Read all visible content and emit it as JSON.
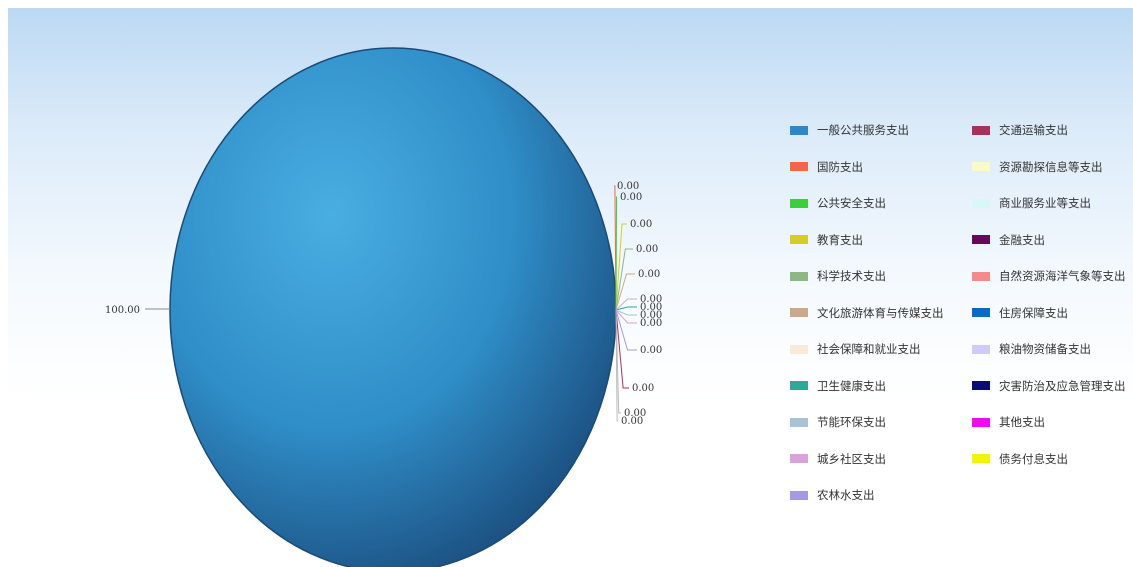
{
  "colors": {
    "pie_main": "#2f8dc7",
    "pie_light": "#49aee2",
    "pie_dark": "#1b4d7e"
  },
  "chart_data": {
    "type": "pie",
    "title": "",
    "legend_position": "right",
    "big_label": "100.00",
    "small_label": "0.00",
    "slices": [
      {
        "name": "一般公共服务支出",
        "value": 100.0,
        "color": "#2f87c9"
      },
      {
        "name": "国防支出",
        "value": 0.0,
        "color": "#ee6a43"
      },
      {
        "name": "公共安全支出",
        "value": 0.0,
        "color": "#3bcf3b"
      },
      {
        "name": "教育支出",
        "value": 0.0,
        "color": "#d6ce27"
      },
      {
        "name": "科学技术支出",
        "value": 0.0,
        "color": "#8fb786"
      },
      {
        "name": "文化旅游体育与传媒支出",
        "value": 0.0,
        "color": "#c9a98a"
      },
      {
        "name": "社会保障和就业支出",
        "value": 0.0,
        "color": "#f9ead9"
      },
      {
        "name": "卫生健康支出",
        "value": 0.0,
        "color": "#2fa89a"
      },
      {
        "name": "节能环保支出",
        "value": 0.0,
        "color": "#a9c2d8"
      },
      {
        "name": "城乡社区支出",
        "value": 0.0,
        "color": "#d9a2d8"
      },
      {
        "name": "农林水支出",
        "value": 0.0,
        "color": "#a39ae2"
      },
      {
        "name": "交通运输支出",
        "value": 0.0,
        "color": "#a8305a"
      },
      {
        "name": "资源勘探信息等支出",
        "value": 0.0,
        "color": "#fafac8"
      },
      {
        "name": "商业服务业等支出",
        "value": 0.0,
        "color": "#d8f8f8"
      },
      {
        "name": "金融支出",
        "value": 0.0,
        "color": "#650a5a"
      },
      {
        "name": "自然资源海洋气象等支出",
        "value": 0.0,
        "color": "#f48a8a"
      },
      {
        "name": "住房保障支出",
        "value": 0.0,
        "color": "#0a6ac6"
      },
      {
        "name": "粮油物资储备支出",
        "value": 0.0,
        "color": "#cfcaf8"
      },
      {
        "name": "灾害防治及应急管理支出",
        "value": 0.0,
        "color": "#0a0a78"
      },
      {
        "name": "其他支出",
        "value": 0.0,
        "color": "#f20af2"
      },
      {
        "name": "债务付息支出",
        "value": 0.0,
        "color": "#f2f20a"
      }
    ]
  }
}
